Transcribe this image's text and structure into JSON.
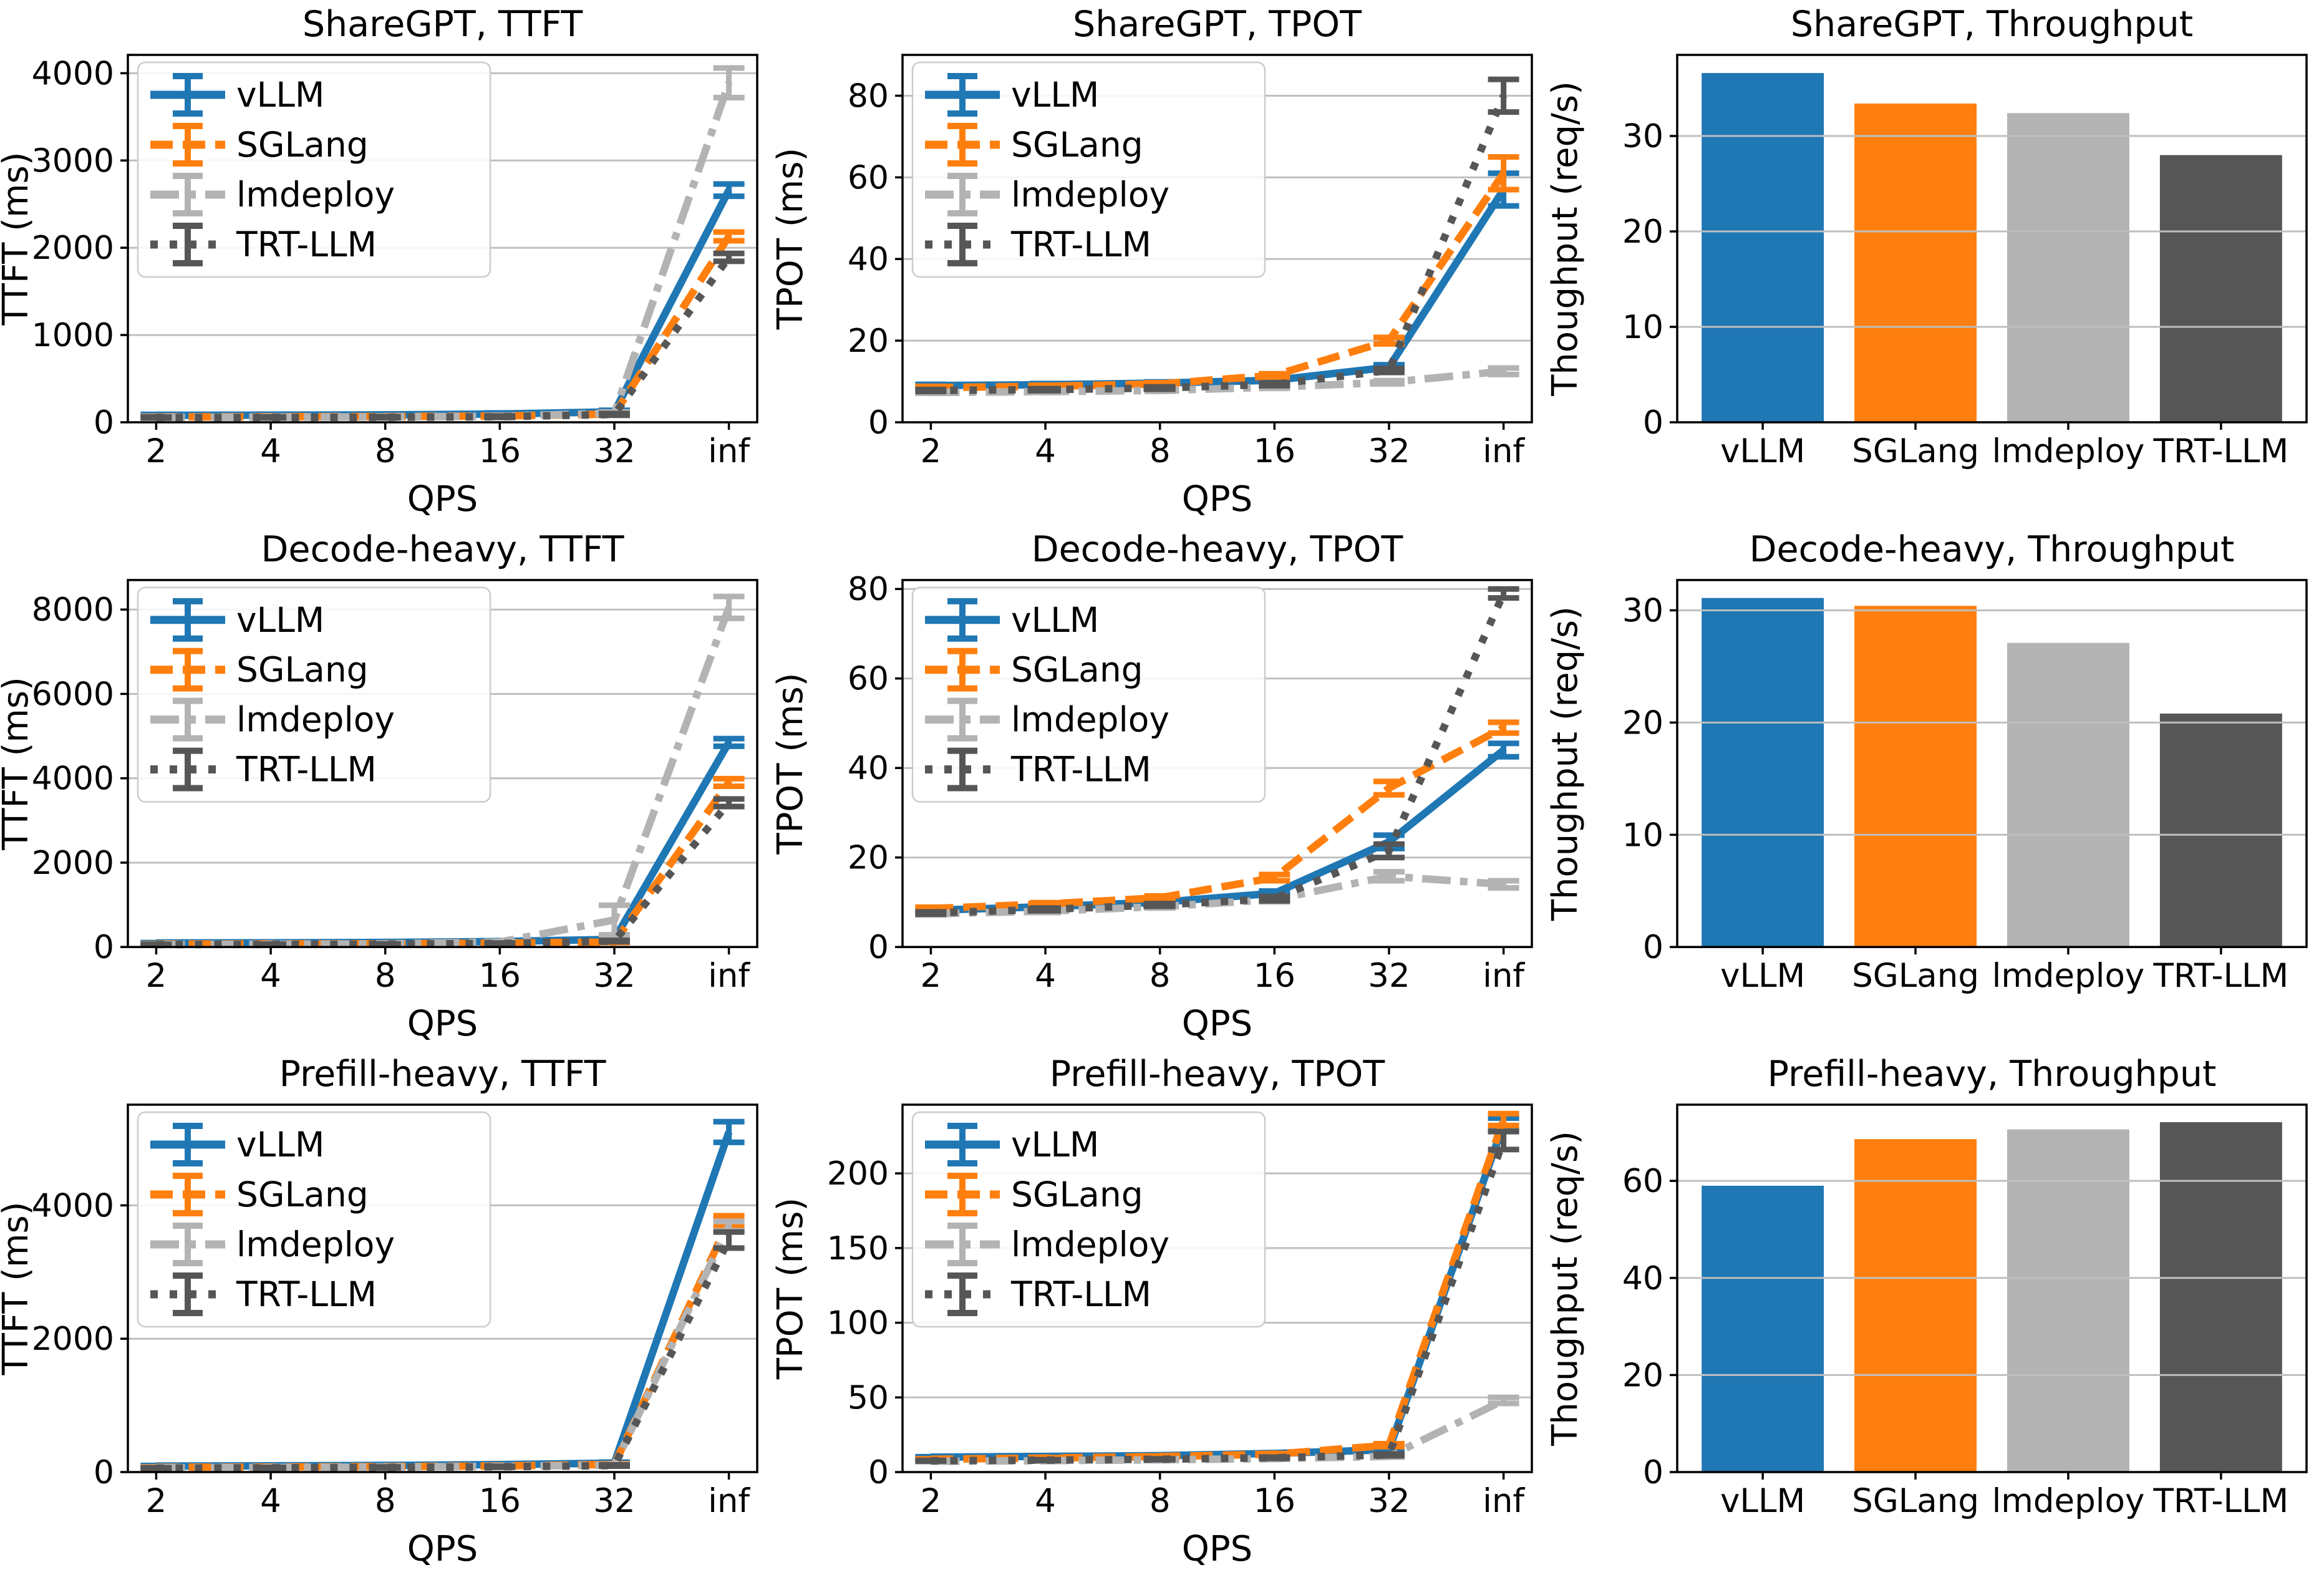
{
  "figure": {
    "background": "#ffffff",
    "grid_color": "#bfbfbf",
    "spine_color": "#000000"
  },
  "frameworks": [
    "vLLM",
    "SGLang",
    "lmdeploy",
    "TRT-LLM"
  ],
  "series_styles": {
    "vLLM": {
      "color": "#1f77b4",
      "dash": "solid"
    },
    "SGLang": {
      "color": "#ff7f0e",
      "dash": "dashed"
    },
    "lmdeploy": {
      "color": "#b3b3b3",
      "dash": "dashdot"
    },
    "TRT-LLM": {
      "color": "#565656",
      "dash": "dotted"
    }
  },
  "chart_data": [
    {
      "type": "line",
      "name": "sharegpt-ttft",
      "title": "ShareGPT, TTFT",
      "xlabel": "QPS",
      "ylabel": "TTFT (ms)",
      "x_ticklabels": [
        "2",
        "4",
        "8",
        "16",
        "32",
        "inf"
      ],
      "yticks": [
        0,
        1000,
        2000,
        3000,
        4000
      ],
      "ylim": [
        0,
        4210
      ],
      "grid": "horizontal",
      "legend": true,
      "series": [
        {
          "name": "vLLM",
          "values": [
            80,
            82,
            85,
            95,
            120,
            2660
          ],
          "err": [
            10,
            10,
            10,
            12,
            18,
            70
          ]
        },
        {
          "name": "SGLang",
          "values": [
            62,
            64,
            66,
            72,
            95,
            2130
          ],
          "err": [
            8,
            8,
            8,
            8,
            12,
            50
          ]
        },
        {
          "name": "lmdeploy",
          "values": [
            58,
            60,
            62,
            70,
            105,
            3890
          ],
          "err": [
            8,
            8,
            8,
            10,
            14,
            170
          ]
        },
        {
          "name": "TRT-LLM",
          "values": [
            55,
            56,
            58,
            64,
            90,
            1890
          ],
          "err": [
            6,
            6,
            6,
            8,
            10,
            45
          ]
        }
      ]
    },
    {
      "type": "line",
      "name": "sharegpt-tpot",
      "title": "ShareGPT, TPOT",
      "xlabel": "QPS",
      "ylabel": "TPOT (ms)",
      "x_ticklabels": [
        "2",
        "4",
        "8",
        "16",
        "32",
        "inf"
      ],
      "yticks": [
        0,
        20,
        40,
        60,
        80
      ],
      "ylim": [
        0,
        90
      ],
      "grid": "horizontal",
      "legend": true,
      "series": [
        {
          "name": "vLLM",
          "values": [
            9.0,
            9.2,
            9.6,
            10.3,
            13.5,
            57
          ],
          "err": [
            0.3,
            0.3,
            0.3,
            0.4,
            0.6,
            4
          ]
        },
        {
          "name": "SGLang",
          "values": [
            8.5,
            8.8,
            9.4,
            11.5,
            20,
            61
          ],
          "err": [
            0.3,
            0.3,
            0.3,
            0.4,
            0.8,
            4
          ]
        },
        {
          "name": "lmdeploy",
          "values": [
            7.3,
            7.5,
            7.8,
            8.6,
            9.8,
            12.5
          ],
          "err": [
            0.2,
            0.2,
            0.2,
            0.3,
            0.4,
            0.8
          ]
        },
        {
          "name": "TRT-LLM",
          "values": [
            7.8,
            8.0,
            8.4,
            9.3,
            12.7,
            80
          ],
          "err": [
            0.25,
            0.25,
            0.3,
            0.35,
            0.5,
            4
          ]
        }
      ]
    },
    {
      "type": "bar",
      "name": "sharegpt-throughput",
      "title": "ShareGPT, Throughput",
      "xlabel": "",
      "ylabel": "Thoughput (req/s)",
      "categories": [
        "vLLM",
        "SGLang",
        "lmdeploy",
        "TRT-LLM"
      ],
      "values": [
        36.6,
        33.4,
        32.4,
        28.0
      ],
      "yticks": [
        0,
        10,
        20,
        30
      ],
      "ylim": [
        0,
        38.5
      ],
      "grid": "horizontal",
      "legend": false
    },
    {
      "type": "line",
      "name": "decode-heavy-ttft",
      "title": "Decode-heavy, TTFT",
      "xlabel": "QPS",
      "ylabel": "TTFT (ms)",
      "x_ticklabels": [
        "2",
        "4",
        "8",
        "16",
        "32",
        "inf"
      ],
      "yticks": [
        0,
        2000,
        4000,
        6000,
        8000
      ],
      "ylim": [
        0,
        8700
      ],
      "grid": "horizontal",
      "legend": true,
      "series": [
        {
          "name": "vLLM",
          "values": [
            95,
            100,
            108,
            130,
            180,
            4850
          ],
          "err": [
            10,
            10,
            12,
            14,
            22,
            90
          ]
        },
        {
          "name": "SGLang",
          "values": [
            70,
            73,
            78,
            92,
            118,
            3900
          ],
          "err": [
            8,
            8,
            8,
            10,
            14,
            90
          ]
        },
        {
          "name": "lmdeploy",
          "values": [
            62,
            66,
            76,
            120,
            640,
            8050
          ],
          "err": [
            8,
            8,
            10,
            16,
            350,
            260
          ]
        },
        {
          "name": "TRT-LLM",
          "values": [
            58,
            61,
            67,
            85,
            140,
            3420
          ],
          "err": [
            6,
            6,
            7,
            9,
            16,
            90
          ]
        }
      ]
    },
    {
      "type": "line",
      "name": "decode-heavy-tpot",
      "title": "Decode-heavy, TPOT",
      "xlabel": "QPS",
      "ylabel": "TPOT (ms)",
      "x_ticklabels": [
        "2",
        "4",
        "8",
        "16",
        "32",
        "inf"
      ],
      "yticks": [
        0,
        20,
        40,
        60,
        80
      ],
      "ylim": [
        0,
        82
      ],
      "grid": "horizontal",
      "legend": true,
      "series": [
        {
          "name": "vLLM",
          "values": [
            8.2,
            9.0,
            10.0,
            12.0,
            23.5,
            44
          ],
          "err": [
            0.3,
            0.3,
            0.4,
            0.5,
            1.5,
            1.5
          ]
        },
        {
          "name": "SGLang",
          "values": [
            8.6,
            9.6,
            11.0,
            15.5,
            35.5,
            49
          ],
          "err": [
            0.3,
            0.3,
            0.4,
            0.7,
            1.5,
            1.2
          ]
        },
        {
          "name": "lmdeploy",
          "values": [
            7.4,
            8.0,
            9.0,
            10.6,
            15.8,
            14
          ],
          "err": [
            0.25,
            0.3,
            0.3,
            0.5,
            1.0,
            0.8
          ]
        },
        {
          "name": "TRT-LLM",
          "values": [
            7.6,
            8.4,
            9.4,
            10.8,
            21.5,
            79
          ],
          "err": [
            0.25,
            0.3,
            0.3,
            0.5,
            1.5,
            1.0
          ]
        }
      ]
    },
    {
      "type": "bar",
      "name": "decode-heavy-throughput",
      "title": "Decode-heavy, Throughput",
      "xlabel": "",
      "ylabel": "Thoughput (req/s)",
      "categories": [
        "vLLM",
        "SGLang",
        "lmdeploy",
        "TRT-LLM"
      ],
      "values": [
        31.1,
        30.4,
        27.1,
        20.8
      ],
      "yticks": [
        0,
        10,
        20,
        30
      ],
      "ylim": [
        0,
        32.7
      ],
      "grid": "horizontal",
      "legend": false
    },
    {
      "type": "line",
      "name": "prefill-heavy-ttft",
      "title": "Prefill-heavy, TTFT",
      "xlabel": "QPS",
      "ylabel": "TTFT (ms)",
      "x_ticklabels": [
        "2",
        "4",
        "8",
        "16",
        "32",
        "inf"
      ],
      "yticks": [
        0,
        2000,
        4000
      ],
      "ylim": [
        0,
        5510
      ],
      "grid": "horizontal",
      "legend": true,
      "series": [
        {
          "name": "vLLM",
          "values": [
            90,
            94,
            100,
            112,
            135,
            5100
          ],
          "err": [
            9,
            9,
            9,
            11,
            14,
            155
          ]
        },
        {
          "name": "SGLang",
          "values": [
            72,
            76,
            82,
            92,
            115,
            3760
          ],
          "err": [
            7,
            7,
            8,
            9,
            11,
            85
          ]
        },
        {
          "name": "lmdeploy",
          "values": [
            66,
            70,
            76,
            86,
            105,
            3690
          ],
          "err": [
            7,
            7,
            7,
            9,
            11,
            70
          ]
        },
        {
          "name": "TRT-LLM",
          "values": [
            60,
            64,
            70,
            80,
            98,
            3480
          ],
          "err": [
            6,
            6,
            7,
            7,
            9,
            120
          ]
        }
      ]
    },
    {
      "type": "line",
      "name": "prefill-heavy-tpot",
      "title": "Prefill-heavy, TPOT",
      "xlabel": "QPS",
      "ylabel": "TPOT (ms)",
      "x_ticklabels": [
        "2",
        "4",
        "8",
        "16",
        "32",
        "inf"
      ],
      "yticks": [
        0,
        50,
        100,
        150,
        200
      ],
      "ylim": [
        0,
        246
      ],
      "grid": "horizontal",
      "legend": true,
      "series": [
        {
          "name": "vLLM",
          "values": [
            10.0,
            10.5,
            11.0,
            12.5,
            15.0,
            233
          ],
          "err": [
            0.3,
            0.3,
            0.4,
            0.5,
            0.8,
            4
          ]
        },
        {
          "name": "SGLang",
          "values": [
            8.6,
            9.4,
            10.4,
            12.0,
            18.0,
            236
          ],
          "err": [
            0.3,
            0.3,
            0.4,
            0.5,
            1.0,
            4
          ]
        },
        {
          "name": "lmdeploy",
          "values": [
            7.2,
            7.6,
            8.2,
            9.0,
            10.5,
            48
          ],
          "err": [
            0.25,
            0.25,
            0.3,
            0.3,
            0.5,
            2
          ]
        },
        {
          "name": "TRT-LLM",
          "values": [
            7.6,
            8.0,
            8.6,
            9.6,
            11.5,
            222
          ],
          "err": [
            0.25,
            0.3,
            0.3,
            0.4,
            0.6,
            6
          ]
        }
      ]
    },
    {
      "type": "bar",
      "name": "prefill-heavy-throughput",
      "title": "Prefill-heavy, Throughput",
      "xlabel": "",
      "ylabel": "Thoughput (req/s)",
      "categories": [
        "vLLM",
        "SGLang",
        "lmdeploy",
        "TRT-LLM"
      ],
      "values": [
        59.0,
        68.6,
        70.6,
        72.1
      ],
      "yticks": [
        0,
        20,
        40,
        60
      ],
      "ylim": [
        0,
        75.7
      ],
      "grid": "horizontal",
      "legend": false
    }
  ]
}
